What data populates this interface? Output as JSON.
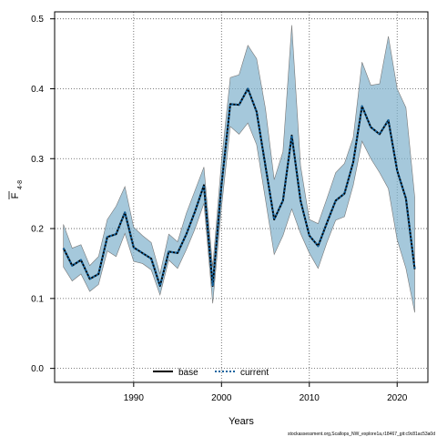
{
  "chart_data": {
    "type": "line",
    "xlabel": "Years",
    "ylabel_main": "F",
    "ylabel_sub": "4-8",
    "xlim": [
      1981.0,
      2023.5
    ],
    "ylim": [
      -0.02,
      0.51
    ],
    "xticks": [
      1990,
      2000,
      2010,
      2020
    ],
    "yticks": [
      0.0,
      0.1,
      0.2,
      0.3,
      0.4,
      0.5
    ],
    "ytick_labels": [
      "0.0",
      "0.1",
      "0.2",
      "0.3",
      "0.4",
      "0.5"
    ],
    "grid": true,
    "grid_style": "dotted",
    "legend_position": "bottom-center",
    "x": [
      1982,
      1983,
      1984,
      1985,
      1986,
      1987,
      1988,
      1989,
      1990,
      1991,
      1992,
      1993,
      1994,
      1995,
      1996,
      1997,
      1998,
      1999,
      2000,
      2001,
      2002,
      2003,
      2004,
      2005,
      2006,
      2007,
      2008,
      2009,
      2010,
      2011,
      2012,
      2013,
      2014,
      2015,
      2016,
      2017,
      2018,
      2019,
      2020,
      2021,
      2022
    ],
    "series": [
      {
        "name": "base",
        "color": "#000000",
        "style": "solid",
        "values": [
          0.172,
          0.147,
          0.155,
          0.128,
          0.135,
          0.188,
          0.192,
          0.223,
          0.173,
          0.165,
          0.157,
          0.118,
          0.167,
          0.165,
          0.192,
          0.225,
          0.262,
          0.118,
          0.262,
          0.378,
          0.377,
          0.4,
          0.367,
          0.29,
          0.213,
          0.24,
          0.333,
          0.24,
          0.19,
          0.175,
          0.208,
          0.24,
          0.25,
          0.295,
          0.375,
          0.345,
          0.335,
          0.355,
          0.283,
          0.243,
          0.142
        ]
      },
      {
        "name": "current",
        "color": "#1565a0",
        "style": "dotted",
        "values": [
          0.172,
          0.147,
          0.155,
          0.128,
          0.135,
          0.188,
          0.192,
          0.223,
          0.173,
          0.165,
          0.157,
          0.118,
          0.167,
          0.165,
          0.192,
          0.225,
          0.262,
          0.118,
          0.262,
          0.378,
          0.377,
          0.4,
          0.367,
          0.29,
          0.213,
          0.24,
          0.333,
          0.24,
          0.19,
          0.175,
          0.208,
          0.24,
          0.25,
          0.295,
          0.375,
          0.345,
          0.335,
          0.355,
          0.283,
          0.243,
          0.142
        ]
      }
    ],
    "band": {
      "color": "#7fb0cc",
      "edge_color": "#777777",
      "opacity": 0.7,
      "upper": [
        0.206,
        0.172,
        0.177,
        0.147,
        0.16,
        0.213,
        0.232,
        0.26,
        0.202,
        0.19,
        0.18,
        0.135,
        0.192,
        0.181,
        0.222,
        0.255,
        0.288,
        0.145,
        0.296,
        0.416,
        0.42,
        0.462,
        0.443,
        0.372,
        0.27,
        0.31,
        0.491,
        0.29,
        0.213,
        0.207,
        0.243,
        0.28,
        0.293,
        0.33,
        0.438,
        0.405,
        0.407,
        0.475,
        0.4,
        0.373,
        0.245
      ],
      "lower": [
        0.145,
        0.125,
        0.135,
        0.11,
        0.12,
        0.168,
        0.16,
        0.193,
        0.153,
        0.15,
        0.141,
        0.105,
        0.155,
        0.143,
        0.17,
        0.2,
        0.236,
        0.093,
        0.23,
        0.346,
        0.335,
        0.351,
        0.32,
        0.242,
        0.163,
        0.19,
        0.228,
        0.193,
        0.165,
        0.143,
        0.18,
        0.212,
        0.217,
        0.262,
        0.325,
        0.3,
        0.28,
        0.257,
        0.184,
        0.143,
        0.08
      ]
    }
  },
  "legend": {
    "base_label": "base",
    "current_label": "current"
  },
  "footer": "stockassessment.org,Scallops_NW_explore1a,r18467_git:c9c81ac53a0d"
}
